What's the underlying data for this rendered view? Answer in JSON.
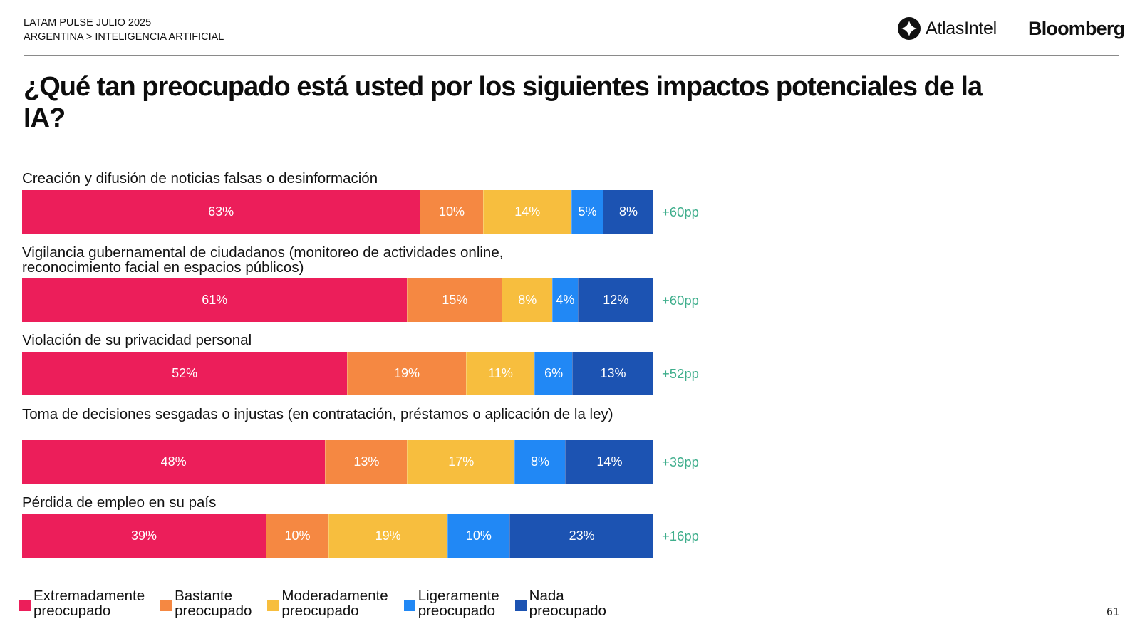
{
  "header": {
    "line1": "LATAM PULSE JULIO 2025",
    "line2": "ARGENTINA > INTELIGENCIA ARTIFICIAL",
    "logo_atlas": "AtlasIntel",
    "logo_bloomberg": "Bloomberg"
  },
  "colors": {
    "extremadamente": "#EC1E5A",
    "bastante": "#F58842",
    "moderadamente": "#F7BE3E",
    "ligeramente": "#2188F5",
    "nada": "#1C53B2",
    "net": "#3FAE8C"
  },
  "chart_data": {
    "type": "bar",
    "orientation": "horizontal",
    "stacked": true,
    "title": "¿Qué tan preocupado está usted por los siguientes impactos potenciales de la IA?",
    "xlabel": "",
    "ylabel": "",
    "xlim": [
      0,
      100
    ],
    "legend_position": "bottom",
    "categories": [
      "Creación y difusión de noticias falsas o desinformación",
      "Vigilancia gubernamental de ciudadanos (monitoreo de actividades online, reconocimiento facial en espacios públicos)",
      "Violación de su privacidad personal",
      "Toma de decisiones sesgadas o injustas (en contratación, préstamos o aplicación de la ley)",
      "Pérdida de empleo en su país"
    ],
    "series": [
      {
        "name": "Extremadamente preocupado",
        "key": "extremadamente",
        "values": [
          63,
          61,
          52,
          48,
          39
        ]
      },
      {
        "name": "Bastante preocupado",
        "key": "bastante",
        "values": [
          10,
          15,
          19,
          13,
          10
        ]
      },
      {
        "name": "Moderadamente preocupado",
        "key": "moderadamente",
        "values": [
          14,
          8,
          11,
          17,
          19
        ]
      },
      {
        "name": "Ligeramente preocupado",
        "key": "ligeramente",
        "values": [
          5,
          4,
          6,
          8,
          10
        ]
      },
      {
        "name": "Nada preocupado",
        "key": "nada",
        "values": [
          8,
          12,
          13,
          14,
          23
        ]
      }
    ],
    "net_labels": [
      "+60pp",
      "+60pp",
      "+52pp",
      "+39pp",
      "+16pp"
    ]
  },
  "legend": [
    {
      "line1": "Extremadamente",
      "line2": "preocupado"
    },
    {
      "line1": "Bastante",
      "line2": "preocupado"
    },
    {
      "line1": "Moderadamente",
      "line2": "preocupado"
    },
    {
      "line1": "Ligeramente",
      "line2": "preocupado"
    },
    {
      "line1": "Nada",
      "line2": "preocupado"
    }
  ],
  "page_number": "61"
}
